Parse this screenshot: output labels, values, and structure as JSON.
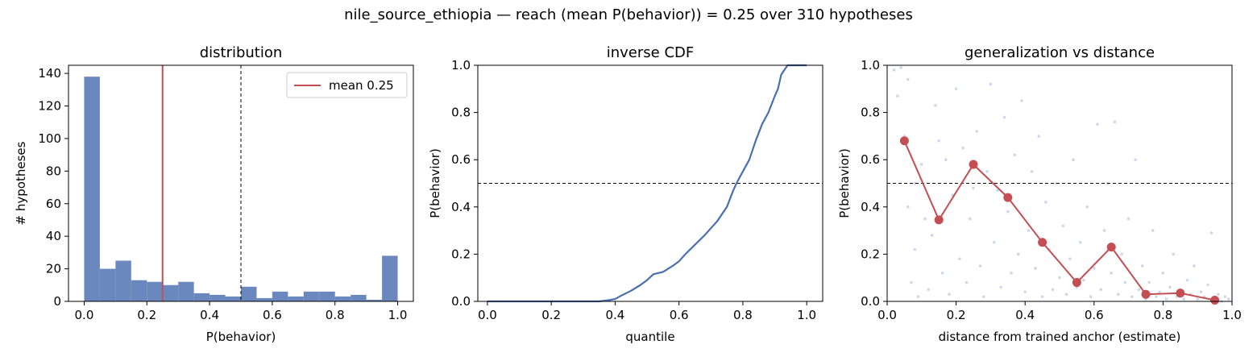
{
  "suptitle": "nile_source_ethiopia  —  reach (mean P(behavior)) = 0.25  over 310 hypotheses",
  "colors": {
    "bar": "#6a88bd",
    "line": "#4a6fb0",
    "mean": "#c44e52",
    "scatter": "#b7c7e6",
    "threshold": "#000000"
  },
  "chart_data": [
    {
      "type": "bar",
      "title": "distribution",
      "xlabel": "P(behavior)",
      "ylabel": "# hypotheses",
      "xlim": [
        -0.05,
        1.05
      ],
      "ylim": [
        0,
        145
      ],
      "xticks": [
        "0.0",
        "0.2",
        "0.4",
        "0.6",
        "0.8",
        "1.0"
      ],
      "yticks": [
        "0",
        "20",
        "40",
        "60",
        "80",
        "100",
        "120",
        "140"
      ],
      "bin_width": 0.05,
      "bin_starts": [
        0.0,
        0.05,
        0.1,
        0.15,
        0.2,
        0.25,
        0.3,
        0.35,
        0.4,
        0.45,
        0.5,
        0.55,
        0.6,
        0.65,
        0.7,
        0.75,
        0.8,
        0.85,
        0.9,
        0.95
      ],
      "values": [
        138,
        20,
        25,
        13,
        12,
        10,
        12,
        5,
        4,
        3,
        9,
        2,
        6,
        3,
        6,
        6,
        3,
        4,
        1,
        28
      ],
      "mean_line": {
        "x": 0.25,
        "label": "mean 0.25"
      },
      "threshold_x": 0.5,
      "legend_position": "top-right"
    },
    {
      "type": "line",
      "title": "inverse CDF",
      "xlabel": "quantile",
      "ylabel": "P(behavior)",
      "xlim": [
        -0.03,
        1.05
      ],
      "ylim": [
        0,
        1.0
      ],
      "xticks": [
        "0.0",
        "0.2",
        "0.4",
        "0.6",
        "0.8",
        "1.0"
      ],
      "yticks": [
        "0.0",
        "0.2",
        "0.4",
        "0.6",
        "0.8",
        "1.0"
      ],
      "threshold_y": 0.5,
      "x": [
        0.0,
        0.2,
        0.3,
        0.35,
        0.38,
        0.4,
        0.42,
        0.45,
        0.48,
        0.5,
        0.52,
        0.55,
        0.58,
        0.6,
        0.62,
        0.65,
        0.68,
        0.7,
        0.72,
        0.75,
        0.77,
        0.78,
        0.8,
        0.82,
        0.84,
        0.86,
        0.88,
        0.9,
        0.91,
        0.92,
        0.93,
        0.94,
        0.95,
        1.0
      ],
      "y": [
        0.0,
        0.0,
        0.0,
        0.0,
        0.005,
        0.01,
        0.025,
        0.045,
        0.07,
        0.09,
        0.115,
        0.125,
        0.15,
        0.17,
        0.2,
        0.24,
        0.28,
        0.31,
        0.34,
        0.4,
        0.47,
        0.5,
        0.55,
        0.6,
        0.68,
        0.75,
        0.8,
        0.87,
        0.9,
        0.96,
        0.98,
        1.0,
        1.0,
        1.0
      ]
    },
    {
      "type": "scatter",
      "title": "generalization vs distance",
      "xlabel": "distance from trained anchor (estimate)",
      "ylabel": "P(behavior)",
      "xlim": [
        0.0,
        1.0
      ],
      "ylim": [
        0.0,
        1.0
      ],
      "xticks": [
        "0.0",
        "0.2",
        "0.4",
        "0.6",
        "0.8",
        "1.0"
      ],
      "yticks": [
        "0.0",
        "0.2",
        "0.4",
        "0.6",
        "0.8",
        "1.0"
      ],
      "threshold_y": 0.5,
      "binned_means": {
        "x": [
          0.05,
          0.15,
          0.25,
          0.35,
          0.45,
          0.55,
          0.65,
          0.75,
          0.85,
          0.95
        ],
        "y": [
          0.68,
          0.345,
          0.58,
          0.44,
          0.25,
          0.08,
          0.23,
          0.03,
          0.035,
          0.005
        ]
      },
      "points": [
        [
          0.02,
          0.98
        ],
        [
          0.04,
          0.99
        ],
        [
          0.06,
          0.94
        ],
        [
          0.03,
          0.87
        ],
        [
          0.05,
          0.7
        ],
        [
          0.07,
          0.08
        ],
        [
          0.09,
          0.02
        ],
        [
          0.08,
          0.22
        ],
        [
          0.06,
          0.4
        ],
        [
          0.1,
          0.58
        ],
        [
          0.12,
          0.05
        ],
        [
          0.13,
          0.28
        ],
        [
          0.14,
          0.83
        ],
        [
          0.16,
          0.12
        ],
        [
          0.17,
          0.6
        ],
        [
          0.18,
          0.03
        ],
        [
          0.19,
          0.45
        ],
        [
          0.2,
          0.9
        ],
        [
          0.21,
          0.18
        ],
        [
          0.22,
          0.65
        ],
        [
          0.23,
          0.08
        ],
        [
          0.24,
          0.35
        ],
        [
          0.26,
          0.72
        ],
        [
          0.27,
          0.15
        ],
        [
          0.28,
          0.02
        ],
        [
          0.29,
          0.55
        ],
        [
          0.3,
          0.92
        ],
        [
          0.31,
          0.25
        ],
        [
          0.32,
          0.47
        ],
        [
          0.33,
          0.06
        ],
        [
          0.34,
          0.78
        ],
        [
          0.35,
          0.38
        ],
        [
          0.36,
          0.12
        ],
        [
          0.37,
          0.62
        ],
        [
          0.38,
          0.2
        ],
        [
          0.39,
          0.85
        ],
        [
          0.4,
          0.04
        ],
        [
          0.41,
          0.3
        ],
        [
          0.42,
          0.55
        ],
        [
          0.43,
          0.14
        ],
        [
          0.44,
          0.7
        ],
        [
          0.45,
          0.02
        ],
        [
          0.46,
          0.42
        ],
        [
          0.47,
          0.22
        ],
        [
          0.48,
          0.05
        ],
        [
          0.49,
          0.5
        ],
        [
          0.5,
          0.1
        ],
        [
          0.51,
          0.32
        ],
        [
          0.52,
          0.03
        ],
        [
          0.53,
          0.18
        ],
        [
          0.54,
          0.6
        ],
        [
          0.55,
          0.06
        ],
        [
          0.56,
          0.25
        ],
        [
          0.57,
          0.09
        ],
        [
          0.58,
          0.4
        ],
        [
          0.59,
          0.02
        ],
        [
          0.6,
          0.14
        ],
        [
          0.61,
          0.75
        ],
        [
          0.62,
          0.05
        ],
        [
          0.63,
          0.3
        ],
        [
          0.64,
          0.5
        ],
        [
          0.65,
          0.12
        ],
        [
          0.66,
          0.76
        ],
        [
          0.67,
          0.03
        ],
        [
          0.68,
          0.2
        ],
        [
          0.69,
          0.08
        ],
        [
          0.7,
          0.35
        ],
        [
          0.71,
          0.02
        ],
        [
          0.72,
          0.6
        ],
        [
          0.73,
          0.05
        ],
        [
          0.74,
          0.15
        ],
        [
          0.75,
          0.01
        ],
        [
          0.76,
          0.08
        ],
        [
          0.77,
          0.3
        ],
        [
          0.78,
          0.02
        ],
        [
          0.79,
          0.04
        ],
        [
          0.8,
          0.12
        ],
        [
          0.81,
          0.01
        ],
        [
          0.82,
          0.06
        ],
        [
          0.83,
          0.2
        ],
        [
          0.84,
          0.02
        ],
        [
          0.85,
          0.05
        ],
        [
          0.86,
          0.01
        ],
        [
          0.87,
          0.09
        ],
        [
          0.88,
          0.03
        ],
        [
          0.89,
          0.15
        ],
        [
          0.9,
          0.01
        ],
        [
          0.91,
          0.04
        ],
        [
          0.92,
          0.02
        ],
        [
          0.93,
          0.07
        ],
        [
          0.94,
          0.29
        ],
        [
          0.95,
          0.01
        ],
        [
          0.96,
          0.03
        ],
        [
          0.97,
          0.0
        ],
        [
          0.98,
          0.02
        ],
        [
          0.99,
          0.01
        ],
        [
          0.11,
          0.35
        ],
        [
          0.25,
          0.48
        ],
        [
          0.15,
          0.68
        ],
        [
          0.08,
          0.5
        ]
      ]
    }
  ]
}
